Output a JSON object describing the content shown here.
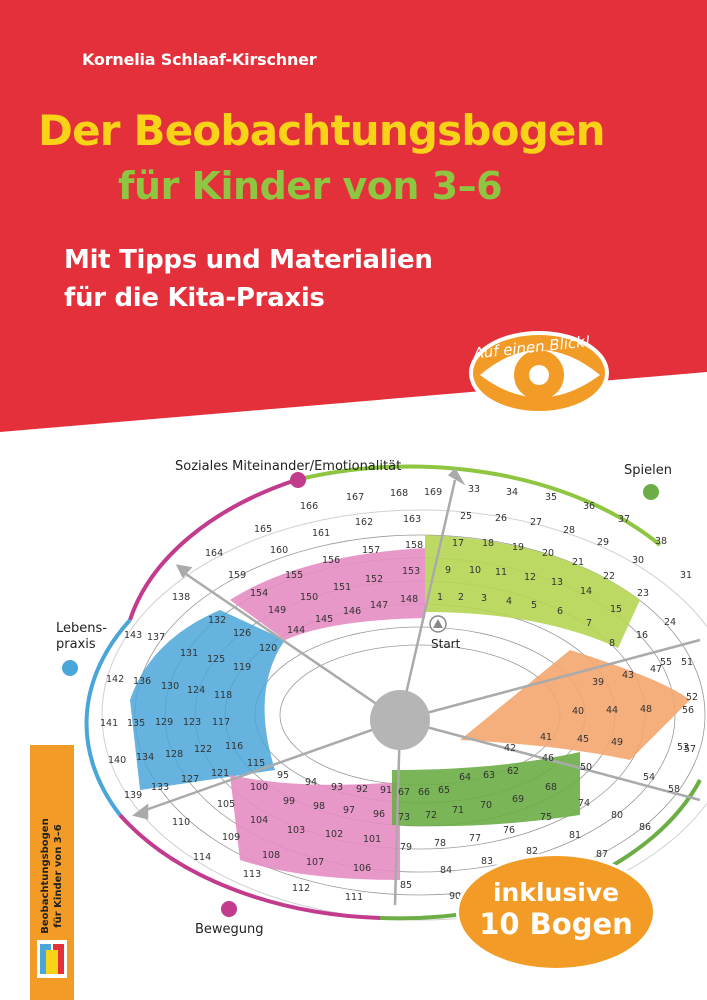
{
  "cover": {
    "author": "Kornelia Schlaaf-Kirschner",
    "title_line1": "Der Beobachtungsbogen",
    "title_line2": "für Kinder von 3–6",
    "subtitle_line1": "Mit Tipps und Materialien",
    "subtitle_line2": "für die Kita-Praxis",
    "eye_caption": "Auf einen Blick!",
    "badge_line1": "inklusive",
    "badge_line2": "10 Bogen",
    "spine_line1": "Beobachtungsbogen",
    "spine_line2": "für Kinder von 3–6"
  },
  "colors": {
    "background": "#e3303a",
    "title_yellow": "#f8d318",
    "title_green": "#8ec541",
    "orange": "#f29b27",
    "pink": "#e58dc2",
    "blue": "#4aa6d8",
    "lime": "#b5d652",
    "salmon": "#f3a66f",
    "green_dark": "#6cae45",
    "violet": "#c23b8c"
  },
  "sheet": {
    "labels": {
      "social": "Soziales Miteinander/Emotionalität",
      "play": "Spielen",
      "life": "Lebens-",
      "life2": "praxis",
      "movement": "Bewegung",
      "start": "Start"
    },
    "nums": {
      "n169": "169",
      "n33": "33",
      "n34": "34",
      "n35": "35",
      "n36": "36",
      "n37": "37",
      "n38": "38",
      "n168": "168",
      "n167": "167",
      "n166": "166",
      "n165": "165",
      "n164": "164",
      "n163": "163",
      "n162": "162",
      "n161": "161",
      "n160": "160",
      "n159": "159",
      "n158": "158",
      "n157": "157",
      "n156": "156",
      "n155": "155",
      "n154": "154",
      "n153": "153",
      "n152": "152",
      "n151": "151",
      "n150": "150",
      "n149": "149",
      "n148": "148",
      "n147": "147",
      "n146": "146",
      "n145": "145",
      "n144": "144",
      "n25": "25",
      "n26": "26",
      "n27": "27",
      "n28": "28",
      "n29": "29",
      "n30": "30",
      "n31": "31",
      "n17": "17",
      "n18": "18",
      "n19": "19",
      "n20": "20",
      "n21": "21",
      "n22": "22",
      "n23": "23",
      "n24": "24",
      "n9": "9",
      "n10": "10",
      "n11": "11",
      "n12": "12",
      "n13": "13",
      "n14": "14",
      "n15": "15",
      "n16": "16",
      "n1": "1",
      "n2": "2",
      "n3": "3",
      "n4": "4",
      "n5": "5",
      "n6": "6",
      "n7": "7",
      "n8": "8",
      "n138": "138",
      "n137": "137",
      "n143": "143",
      "n142": "142",
      "n141": "141",
      "n140": "140",
      "n139": "139",
      "n132": "132",
      "n131": "131",
      "n126": "126",
      "n125": "125",
      "n120": "120",
      "n119": "119",
      "n136": "136",
      "n130": "130",
      "n124": "124",
      "n118": "118",
      "n135": "135",
      "n129": "129",
      "n123": "123",
      "n117": "117",
      "n134": "134",
      "n128": "128",
      "n122": "122",
      "n116": "116",
      "n133": "133",
      "n127": "127",
      "n121": "121",
      "n115": "115",
      "n51": "51",
      "n52": "52",
      "n53": "53",
      "n54": "54",
      "n55": "55",
      "n56": "56",
      "n57": "57",
      "n58": "58",
      "n39": "39",
      "n43": "43",
      "n47": "47",
      "n40": "40",
      "n44": "44",
      "n48": "48",
      "n41": "41",
      "n45": "45",
      "n49": "49",
      "n42": "42",
      "n46": "46",
      "n50": "50",
      "n110": "110",
      "n105": "105",
      "n100": "100",
      "n95": "95",
      "n94": "94",
      "n93": "93",
      "n92": "92",
      "n91": "91",
      "n104": "104",
      "n99": "99",
      "n98": "98",
      "n97": "97",
      "n96": "96",
      "n109": "109",
      "n103": "103",
      "n102": "102",
      "n101": "101",
      "n108": "108",
      "n114": "114",
      "n113": "113",
      "n107": "107",
      "n106": "106",
      "n112": "112",
      "n111": "111",
      "n67": "67",
      "n66": "66",
      "n65": "65",
      "n64": "64",
      "n63": "63",
      "n62": "62",
      "n68": "68",
      "n73": "73",
      "n72": "72",
      "n71": "71",
      "n70": "70",
      "n69": "69",
      "n74": "74",
      "n75": "75",
      "n79": "79",
      "n78": "78",
      "n77": "77",
      "n76": "76",
      "n80": "80",
      "n81": "81",
      "n82": "82",
      "n85": "85",
      "n84": "84",
      "n83": "83",
      "n86": "86",
      "n87": "87",
      "n90": "90"
    }
  }
}
